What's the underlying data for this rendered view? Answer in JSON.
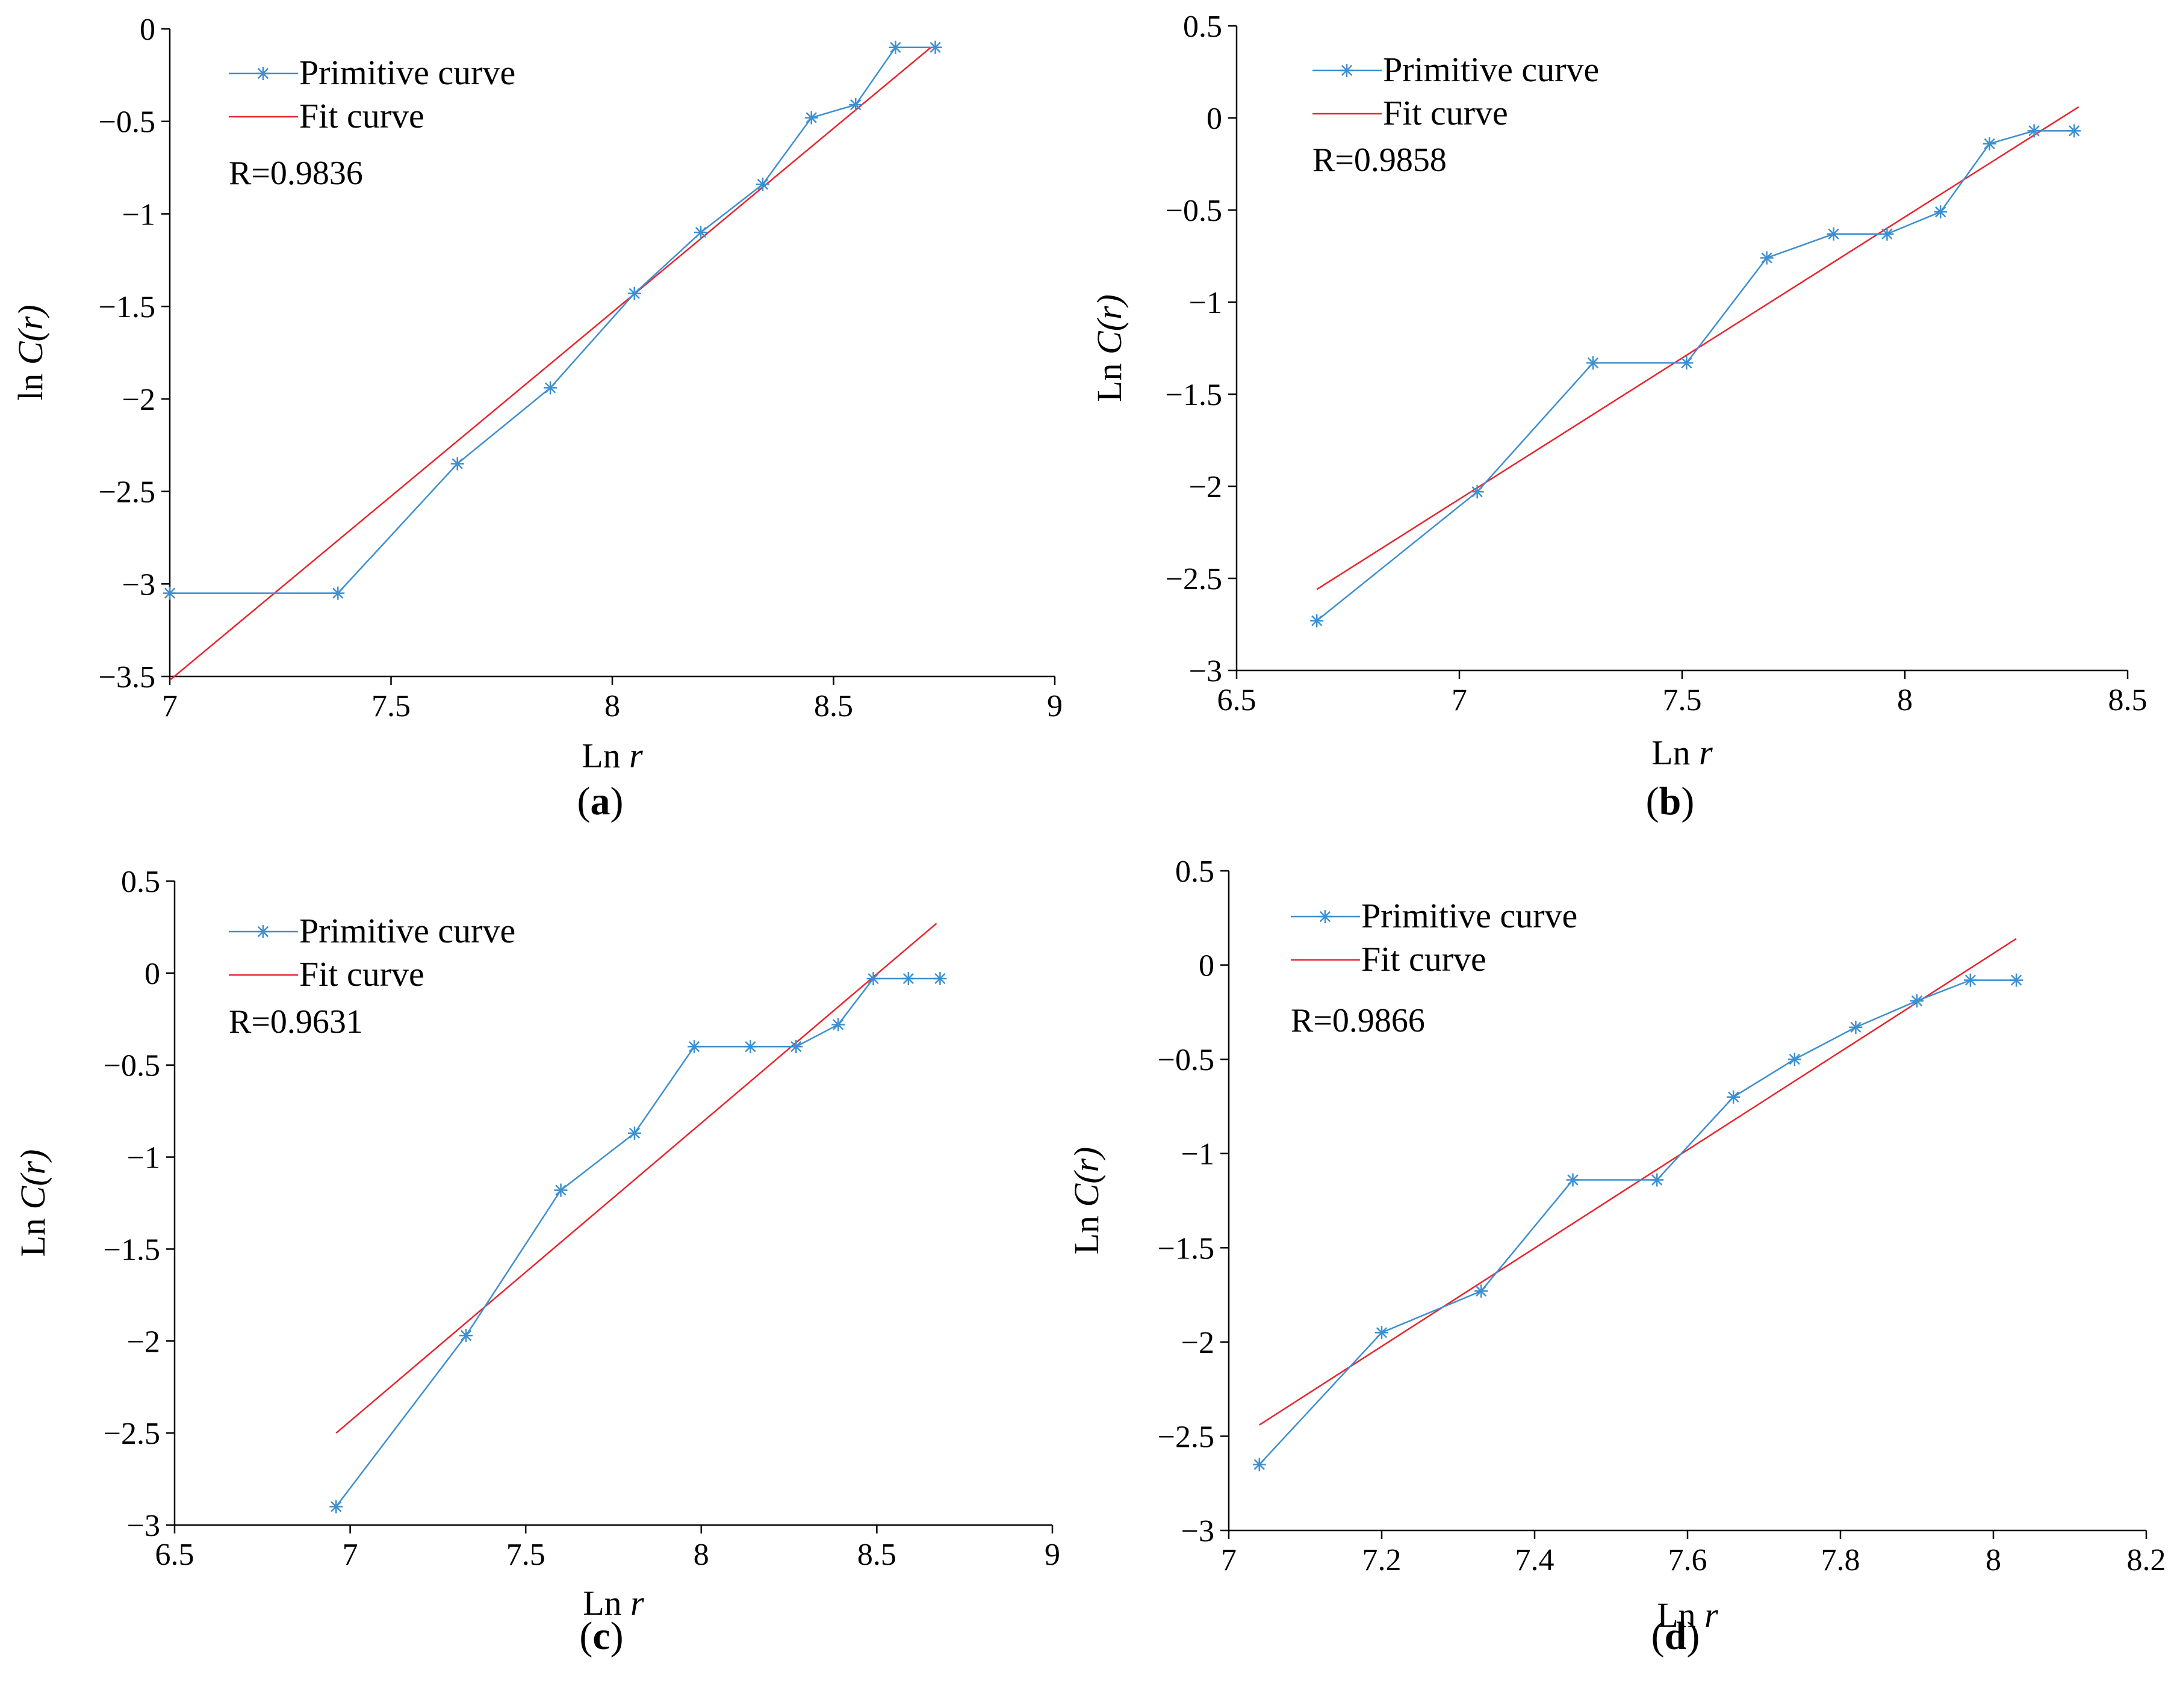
{
  "figure": {
    "panels": [
      "a",
      "b",
      "c",
      "d"
    ]
  },
  "chart_data": [
    {
      "id": "a",
      "type": "line",
      "panel_label": "a",
      "xlabel_main": "Ln ",
      "xlabel_var": "r",
      "ylabel_main": "ln ",
      "ylabel_var": "C(r)",
      "xlim": [
        7,
        9
      ],
      "ylim": [
        -3.5,
        0
      ],
      "xticks": [
        "7",
        "7.5",
        "8",
        "8.5",
        "9"
      ],
      "xtick_values": [
        7,
        7.5,
        8,
        8.5,
        9
      ],
      "yticks": [
        "0",
        "−0.5",
        "−1",
        "−1.5",
        "−2",
        "−2.5",
        "−3",
        "−3.5"
      ],
      "ytick_values": [
        0,
        -0.5,
        -1,
        -1.5,
        -2,
        -2.5,
        -3,
        -3.5
      ],
      "legend": [
        "Primitive curve",
        "Fit curve"
      ],
      "r_text": "R=0.9836",
      "series": [
        {
          "name": "Primitive curve",
          "color": "#3d8fcf",
          "x": [
            7.0,
            7.38,
            7.65,
            7.86,
            8.05,
            8.2,
            8.34,
            8.45,
            8.55,
            8.64,
            8.73
          ],
          "y": [
            -3.05,
            -3.05,
            -2.35,
            -1.94,
            -1.43,
            -1.1,
            -0.84,
            -0.48,
            -0.41,
            -0.1,
            -0.1
          ]
        },
        {
          "name": "Fit curve",
          "color": "#e8242c",
          "x": [
            7.0,
            8.72
          ],
          "y": [
            -3.52,
            -0.1
          ]
        }
      ]
    },
    {
      "id": "b",
      "type": "line",
      "panel_label": "b",
      "xlabel_main": "Ln ",
      "xlabel_var": "r",
      "ylabel_main": "Ln ",
      "ylabel_var": "C(r)",
      "xlim": [
        6.5,
        8.5
      ],
      "ylim": [
        -3,
        0.5
      ],
      "xticks": [
        "6.5",
        "7",
        "7.5",
        "8",
        "8.5"
      ],
      "xtick_values": [
        6.5,
        7,
        7.5,
        8,
        8.5
      ],
      "yticks": [
        "0.5",
        "0",
        "−0.5",
        "−1",
        "−1.5",
        "−2",
        "−2.5",
        "−3"
      ],
      "ytick_values": [
        0.5,
        0,
        -0.5,
        -1,
        -1.5,
        -2,
        -2.5,
        -3
      ],
      "legend": [
        "Primitive curve",
        "Fit curve"
      ],
      "r_text": "R=0.9858",
      "series": [
        {
          "name": "Primitive curve",
          "color": "#3d8fcf",
          "x": [
            6.68,
            7.04,
            7.3,
            7.51,
            7.69,
            7.84,
            7.96,
            8.08,
            8.19,
            8.29,
            8.38
          ],
          "y": [
            -2.73,
            -2.03,
            -1.33,
            -1.33,
            -0.76,
            -0.63,
            -0.63,
            -0.51,
            -0.14,
            -0.07,
            -0.07
          ]
        },
        {
          "name": "Fit curve",
          "color": "#e8242c",
          "x": [
            6.68,
            8.39
          ],
          "y": [
            -2.56,
            0.06
          ]
        }
      ]
    },
    {
      "id": "c",
      "type": "line",
      "panel_label": "c",
      "xlabel_main": "Ln ",
      "xlabel_var": "r",
      "ylabel_main": "Ln ",
      "ylabel_var": "C(r)",
      "xlim": [
        6.5,
        9
      ],
      "ylim": [
        -3,
        0.5
      ],
      "xticks": [
        "6.5",
        "7",
        "7.5",
        "8",
        "8.5",
        "9"
      ],
      "xtick_values": [
        6.5,
        7,
        7.5,
        8,
        8.5,
        9
      ],
      "yticks": [
        "0.5",
        "0",
        "−0.5",
        "−1",
        "−1.5",
        "−2",
        "−2.5",
        "−3"
      ],
      "ytick_values": [
        0.5,
        0,
        -0.5,
        -1,
        -1.5,
        -2,
        -2.5,
        -3
      ],
      "legend": [
        "Primitive curve",
        "Fit curve"
      ],
      "r_text": "R=0.9631",
      "series": [
        {
          "name": "Primitive curve",
          "color": "#3d8fcf",
          "x": [
            6.96,
            7.33,
            7.6,
            7.81,
            7.98,
            8.14,
            8.27,
            8.39,
            8.49,
            8.59,
            8.68
          ],
          "y": [
            -2.9,
            -1.97,
            -1.18,
            -0.87,
            -0.4,
            -0.4,
            -0.4,
            -0.28,
            -0.03,
            -0.03,
            -0.03
          ]
        },
        {
          "name": "Fit curve",
          "color": "#e8242c",
          "x": [
            6.96,
            8.67
          ],
          "y": [
            -2.5,
            0.27
          ]
        }
      ]
    },
    {
      "id": "d",
      "type": "line",
      "panel_label": "d",
      "xlabel_main": "Ln ",
      "xlabel_var": "r",
      "ylabel_main": "Ln ",
      "ylabel_var": "C(r)",
      "xlim": [
        7,
        8.2
      ],
      "ylim": [
        -3,
        0.5
      ],
      "xticks": [
        "7",
        "7.2",
        "7.4",
        "7.6",
        "7.8",
        "8",
        "8.2"
      ],
      "xtick_values": [
        7,
        7.2,
        7.4,
        7.6,
        7.8,
        8,
        8.2
      ],
      "yticks": [
        "0.5",
        "0",
        "−0.5",
        "−1",
        "−1.5",
        "−2",
        "−2.5",
        "−3"
      ],
      "ytick_values": [
        0.5,
        0,
        -0.5,
        -1,
        -1.5,
        -2,
        -2.5,
        -3
      ],
      "legend": [
        "Primitive curve",
        "Fit curve"
      ],
      "r_text": "R=0.9866",
      "series": [
        {
          "name": "Primitive curve",
          "color": "#3d8fcf",
          "x": [
            7.04,
            7.2,
            7.33,
            7.45,
            7.56,
            7.66,
            7.74,
            7.82,
            7.9,
            7.97,
            8.03
          ],
          "y": [
            -2.65,
            -1.95,
            -1.73,
            -1.14,
            -1.14,
            -0.7,
            -0.5,
            -0.33,
            -0.19,
            -0.08,
            -0.08
          ]
        },
        {
          "name": "Fit curve",
          "color": "#e8242c",
          "x": [
            7.04,
            8.03
          ],
          "y": [
            -2.44,
            0.14
          ]
        }
      ]
    }
  ]
}
